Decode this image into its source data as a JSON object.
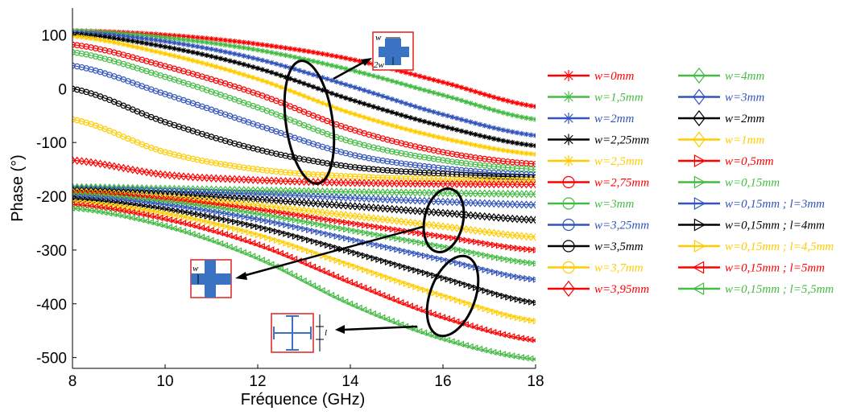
{
  "chart_data": {
    "type": "line",
    "xlabel": "Fréquence (GHz)",
    "ylabel": "Phase (°)",
    "xlim": [
      8,
      18
    ],
    "ylim": [
      -520,
      150
    ],
    "xticks": [
      8,
      10,
      12,
      14,
      16,
      18
    ],
    "yticks": [
      100,
      0,
      -100,
      -200,
      -300,
      -400,
      -500
    ],
    "grid": false,
    "legend_placement": "right",
    "series": [
      {
        "name": "w=0mm",
        "color": "#ff0000",
        "marker": "star",
        "x": [
          8,
          10,
          12,
          14,
          16,
          18
        ],
        "y": [
          108,
          100,
          83,
          55,
          12,
          -33
        ]
      },
      {
        "name": "w=1,5mm",
        "color": "#44bb44",
        "marker": "star",
        "x": [
          8,
          10,
          12,
          14,
          16,
          18
        ],
        "y": [
          108,
          95,
          72,
          35,
          -12,
          -57
        ]
      },
      {
        "name": "w=2mm",
        "color": "#3355bb",
        "marker": "star",
        "x": [
          8,
          10,
          12,
          14,
          16,
          18
        ],
        "y": [
          105,
          88,
          55,
          5,
          -48,
          -87
        ]
      },
      {
        "name": "w=2,25mm",
        "color": "#000000",
        "marker": "star",
        "x": [
          8,
          10,
          12,
          14,
          16,
          18
        ],
        "y": [
          102,
          78,
          38,
          -20,
          -70,
          -106
        ]
      },
      {
        "name": "w=2,5mm",
        "color": "#ffcc00",
        "marker": "star",
        "x": [
          8,
          10,
          12,
          14,
          16,
          18
        ],
        "y": [
          98,
          65,
          18,
          -45,
          -92,
          -122
        ]
      },
      {
        "name": "w=2,75mm",
        "color": "#ff0000",
        "marker": "circle",
        "x": [
          8,
          10,
          12,
          14,
          16,
          18
        ],
        "y": [
          82,
          42,
          -10,
          -75,
          -118,
          -140
        ]
      },
      {
        "name": "w=3mm",
        "color": "#44bb44",
        "marker": "circle",
        "x": [
          8,
          10,
          12,
          14,
          16,
          18
        ],
        "y": [
          68,
          22,
          -35,
          -98,
          -133,
          -150
        ]
      },
      {
        "name": "w=3,25mm",
        "color": "#3355bb",
        "marker": "circle",
        "x": [
          8,
          10,
          12,
          14,
          16,
          18
        ],
        "y": [
          43,
          -10,
          -68,
          -122,
          -148,
          -160
        ]
      },
      {
        "name": "w=3,5mm",
        "color": "#000000",
        "marker": "circle",
        "x": [
          8,
          10,
          12,
          14,
          16,
          18
        ],
        "y": [
          0,
          -62,
          -113,
          -145,
          -158,
          -165
        ]
      },
      {
        "name": "w=3,7mm",
        "color": "#ffcc00",
        "marker": "circle",
        "x": [
          8,
          10,
          12,
          14,
          16,
          18
        ],
        "y": [
          -57,
          -118,
          -150,
          -163,
          -168,
          -170
        ]
      },
      {
        "name": "w=3,95mm",
        "color": "#ff0000",
        "marker": "diamond",
        "x": [
          8,
          10,
          12,
          14,
          16,
          18
        ],
        "y": [
          -133,
          -160,
          -170,
          -175,
          -177,
          -178
        ]
      },
      {
        "name": "w=4mm",
        "color": "#44bb44",
        "marker": "diamond",
        "x": [
          8,
          10,
          12,
          14,
          16,
          18
        ],
        "y": [
          -183,
          -186,
          -189,
          -192,
          -194,
          -196
        ]
      },
      {
        "name": "w=3mm",
        "color": "#3355bb",
        "marker": "diamond",
        "x": [
          8,
          10,
          12,
          14,
          16,
          18
        ],
        "y": [
          -186,
          -190,
          -196,
          -203,
          -210,
          -216
        ]
      },
      {
        "name": "w=2mm",
        "color": "#000000",
        "marker": "diamond",
        "x": [
          8,
          10,
          12,
          14,
          16,
          18
        ],
        "y": [
          -189,
          -196,
          -206,
          -218,
          -231,
          -244
        ]
      },
      {
        "name": "w=1mm",
        "color": "#ffcc00",
        "marker": "diamond",
        "x": [
          8,
          10,
          12,
          14,
          16,
          18
        ],
        "y": [
          -191,
          -201,
          -217,
          -236,
          -256,
          -276
        ]
      },
      {
        "name": "w=0,5mm",
        "color": "#ff0000",
        "marker": "triangle-right",
        "x": [
          8,
          10,
          12,
          14,
          16,
          18
        ],
        "y": [
          -193,
          -205,
          -225,
          -250,
          -275,
          -300
        ]
      },
      {
        "name": "w=0,15mm",
        "color": "#44bb44",
        "marker": "triangle-right",
        "x": [
          8,
          10,
          12,
          14,
          16,
          18
        ],
        "y": [
          -196,
          -210,
          -233,
          -263,
          -294,
          -325
        ]
      },
      {
        "name": "w=0,15mm ; l=3mm",
        "color": "#3355bb",
        "marker": "triangle-right",
        "x": [
          8,
          10,
          12,
          14,
          16,
          18
        ],
        "y": [
          -200,
          -216,
          -243,
          -280,
          -318,
          -355
        ]
      },
      {
        "name": "w=0,15mm ; l=4mm",
        "color": "#000000",
        "marker": "triangle-right",
        "x": [
          8,
          10,
          12,
          14,
          16,
          18
        ],
        "y": [
          -205,
          -224,
          -257,
          -303,
          -352,
          -398
        ]
      },
      {
        "name": "w=0,15mm ; l=4,5mm",
        "color": "#ffcc00",
        "marker": "triangle-right",
        "x": [
          8,
          10,
          12,
          14,
          16,
          18
        ],
        "y": [
          -210,
          -232,
          -272,
          -328,
          -385,
          -432
        ]
      },
      {
        "name": "w=0,15mm ; l=5mm",
        "color": "#ff0000",
        "marker": "triangle-left",
        "x": [
          8,
          10,
          12,
          14,
          16,
          18
        ],
        "y": [
          -215,
          -242,
          -290,
          -360,
          -425,
          -468
        ]
      },
      {
        "name": "w=0,15mm ; l=5,5mm",
        "color": "#44bb44",
        "marker": "triangle-left",
        "x": [
          8,
          10,
          12,
          14,
          16,
          18
        ],
        "y": [
          -222,
          -255,
          -315,
          -400,
          -465,
          -503
        ]
      }
    ]
  },
  "insets": {
    "top_w_label": "w",
    "top_2w_label": "2w",
    "middle_w_label": "w",
    "bottom_l_label": "l"
  }
}
